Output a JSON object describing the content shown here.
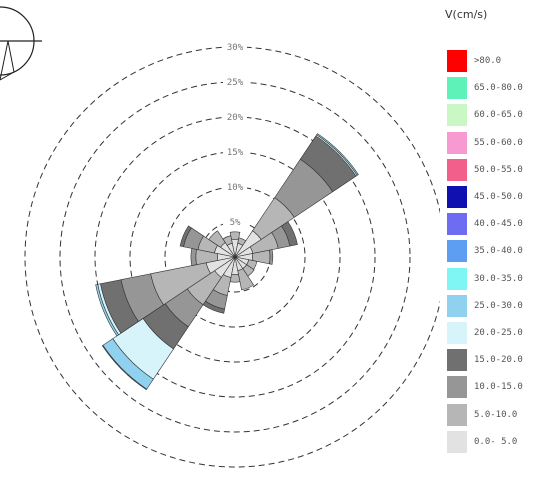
{
  "chart_data": {
    "type": "windrose",
    "legend_title": "V(cm/s)",
    "ring_labels": [
      "5%",
      "10%",
      "15%",
      "20%",
      "25%",
      "30%"
    ],
    "ring_max_percent": 30,
    "bins": [
      {
        "label": "0.0- 5.0",
        "color": "#e2e2e2"
      },
      {
        "label": "5.0-10.0",
        "color": "#b6b6b6"
      },
      {
        "label": "10.0-15.0",
        "color": "#969696"
      },
      {
        "label": "15.0-20.0",
        "color": "#707070"
      },
      {
        "label": "20.0-25.0",
        "color": "#d8f4fb"
      },
      {
        "label": "25.0-30.0",
        "color": "#8fd1ee"
      },
      {
        "label": "30.0-35.0",
        "color": "#7ff6f4"
      },
      {
        "label": "35.0-40.0",
        "color": "#5d9ef2"
      },
      {
        "label": "40.0-45.0",
        "color": "#6d6cf2"
      },
      {
        "label": "45.0-50.0",
        "color": "#1010b0"
      },
      {
        "label": "50.0-55.0",
        "color": "#f35f8b"
      },
      {
        "label": "55.0-60.0",
        "color": "#f69ad1"
      },
      {
        "label": "60.0-65.0",
        "color": "#c9f8c4"
      },
      {
        "label": "65.0-80.0",
        "color": "#5ff2b8"
      },
      {
        "label": ">80.0",
        "color": "#ff0000"
      }
    ],
    "directions": [
      {
        "dir_deg": 0,
        "cum": [
          2.5,
          3.6
        ]
      },
      {
        "dir_deg": 22.5,
        "cum": [
          2.0,
          2.8
        ]
      },
      {
        "dir_deg": 45,
        "cum": [
          4.5,
          10.2,
          16.8,
          20.8,
          21.0,
          21.2
        ]
      },
      {
        "dir_deg": 67.5,
        "cum": [
          2.6,
          6.3,
          8.0,
          9.1
        ]
      },
      {
        "dir_deg": 90,
        "cum": [
          2.5,
          5.0,
          5.4
        ]
      },
      {
        "dir_deg": 112.5,
        "cum": [
          2.0,
          3.2
        ]
      },
      {
        "dir_deg": 135,
        "cum": [
          2.0,
          3.3
        ]
      },
      {
        "dir_deg": 157.5,
        "cum": [
          2.0,
          4.8
        ]
      },
      {
        "dir_deg": 180,
        "cum": [
          2.5,
          3.6
        ]
      },
      {
        "dir_deg": 202.5,
        "cum": [
          3.0,
          5.6,
          7.6,
          8.2
        ]
      },
      {
        "dir_deg": 225,
        "cum": [
          3.5,
          8.2,
          12.0,
          15.8,
          21.0,
          22.7,
          22.8
        ]
      },
      {
        "dir_deg": 247.5,
        "cum": [
          4.2,
          12.3,
          16.6,
          19.6,
          20.0,
          20.3
        ]
      },
      {
        "dir_deg": 270,
        "cum": [
          2.5,
          5.6,
          6.3
        ]
      },
      {
        "dir_deg": 292.5,
        "cum": [
          3.0,
          5.4,
          7.5,
          8.0
        ]
      },
      {
        "dir_deg": 315,
        "cum": [
          2.5,
          4.5
        ]
      },
      {
        "dir_deg": 337.5,
        "cum": [
          2.0,
          3.1
        ]
      }
    ]
  }
}
